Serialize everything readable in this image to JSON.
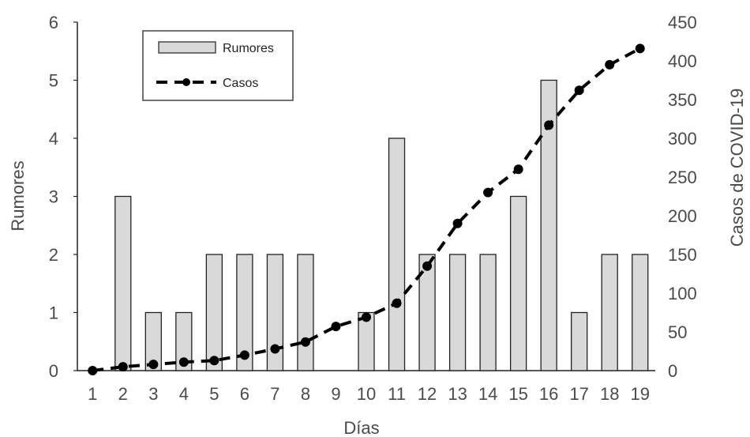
{
  "chart_data": {
    "type": "bar",
    "title": "",
    "xlabel": "Días",
    "ylabel": "Rumores",
    "y2label": "Casos de COVID-19",
    "categories": [
      "1",
      "2",
      "3",
      "4",
      "5",
      "6",
      "7",
      "8",
      "9",
      "10",
      "11",
      "12",
      "13",
      "14",
      "15",
      "16",
      "17",
      "18",
      "19"
    ],
    "ylim": [
      0,
      6
    ],
    "y2lim": [
      0,
      450
    ],
    "yticks": [
      "0",
      "1",
      "2",
      "3",
      "4",
      "5",
      "6"
    ],
    "y2ticks": [
      "0",
      "50",
      "100",
      "150",
      "200",
      "250",
      "300",
      "350",
      "400",
      "450"
    ],
    "series": [
      {
        "name": "Rumores",
        "type": "bar",
        "axis": "left",
        "values": [
          0,
          3,
          1,
          1,
          2,
          2,
          2,
          2,
          0,
          1,
          4,
          2,
          2,
          2,
          3,
          5,
          1,
          2,
          2
        ]
      },
      {
        "name": "Casos",
        "type": "line",
        "axis": "right",
        "values": [
          0,
          5,
          8,
          11,
          13,
          20,
          28,
          37,
          57,
          69,
          87,
          135,
          190,
          230,
          260,
          317,
          362,
          395,
          416
        ]
      }
    ],
    "legend": "top-left",
    "grid": false,
    "colors": {
      "bar_fill": "#d9d9d9",
      "bar_stroke": "#222222",
      "line": "#000000",
      "axis": "#222222",
      "text": "#4a4a4a"
    }
  }
}
